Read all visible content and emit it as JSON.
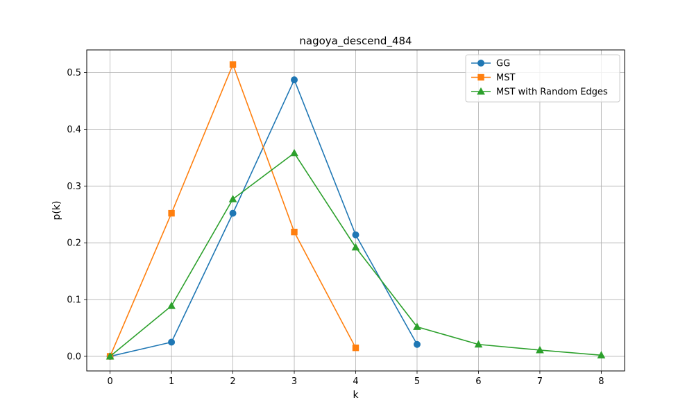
{
  "chart_data": {
    "type": "line",
    "title": "nagoya_descend_484",
    "xlabel": "k",
    "ylabel": "p(k)",
    "xlim": [
      -0.38,
      8.38
    ],
    "ylim": [
      -0.0257,
      0.5397
    ],
    "xticks": [
      0,
      1,
      2,
      3,
      4,
      5,
      6,
      7,
      8
    ],
    "yticks": [
      0.0,
      0.1,
      0.2,
      0.3,
      0.4,
      0.5
    ],
    "ytick_labels": [
      "0.0",
      "0.1",
      "0.2",
      "0.3",
      "0.4",
      "0.5"
    ],
    "grid": true,
    "legend_position": "top-right",
    "series": [
      {
        "name": "GG",
        "color": "#1f77b4",
        "marker": "circle",
        "x": [
          0,
          1,
          2,
          3,
          4,
          5
        ],
        "y": [
          0.0,
          0.025,
          0.252,
          0.487,
          0.214,
          0.021
        ]
      },
      {
        "name": "MST",
        "color": "#ff7f0e",
        "marker": "square",
        "x": [
          0,
          1,
          2,
          3,
          4
        ],
        "y": [
          0.0,
          0.252,
          0.514,
          0.219,
          0.015
        ]
      },
      {
        "name": "MST with Random Edges",
        "color": "#2ca02c",
        "marker": "triangle",
        "x": [
          0,
          1,
          2,
          3,
          4,
          5,
          6,
          7,
          8
        ],
        "y": [
          0.0,
          0.089,
          0.277,
          0.358,
          0.192,
          0.052,
          0.021,
          0.011,
          0.002
        ]
      }
    ]
  }
}
